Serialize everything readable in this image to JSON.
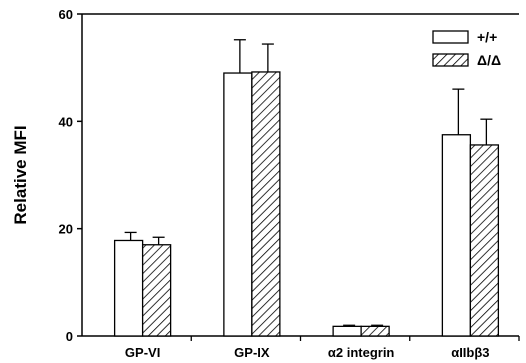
{
  "chart_data": {
    "type": "bar",
    "title": "",
    "xlabel": "",
    "ylabel": "Relative MFI",
    "categories": [
      "GP-VI",
      "GP-IX",
      "α2 integrin",
      "αIIbβ3"
    ],
    "ylim": [
      0,
      60
    ],
    "yticks": [
      0,
      20,
      40,
      60
    ],
    "grid": false,
    "legend_position": "top-right",
    "series": [
      {
        "name": "+/+",
        "fill": "open",
        "values": [
          17.8,
          49.0,
          1.8,
          37.5
        ],
        "errors": [
          1.5,
          6.2,
          0.2,
          8.5
        ]
      },
      {
        "name": "Δ/Δ",
        "fill": "hatched",
        "values": [
          17.0,
          49.2,
          1.8,
          35.6
        ],
        "errors": [
          1.4,
          5.2,
          0.2,
          4.8
        ]
      }
    ],
    "colors": {
      "axis": "#000000",
      "bar_fill": "#ffffff",
      "hatch": "#000000"
    }
  }
}
